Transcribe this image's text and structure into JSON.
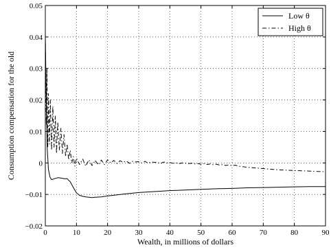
{
  "chart_data": {
    "type": "line",
    "title": "",
    "xlabel": "Wealth, in millions of dollars",
    "ylabel": "Consumption compensation for the old",
    "xlim": [
      0,
      90
    ],
    "ylim": [
      -0.02,
      0.05
    ],
    "xticks": [
      0,
      10,
      20,
      30,
      40,
      50,
      60,
      70,
      80,
      90
    ],
    "xtick_labels": [
      "0",
      "10",
      "20",
      "30",
      "40",
      "50",
      "60",
      "70",
      "80",
      "90"
    ],
    "yticks": [
      -0.02,
      -0.01,
      0,
      0.01,
      0.02,
      0.03,
      0.04,
      0.05
    ],
    "ytick_labels": [
      "−0.02",
      "−0.01",
      "0",
      "0.01",
      "0.02",
      "0.03",
      "0.04",
      "0.05"
    ],
    "grid": true,
    "legend_position": "top-right",
    "series": [
      {
        "name": "Low θ",
        "style": "solid",
        "color": "#000000",
        "x": [
          0,
          0.3,
          0.6,
          1,
          1.5,
          2,
          3,
          4,
          5,
          6,
          7,
          8,
          9,
          10,
          11,
          12,
          13,
          14,
          15,
          16,
          18,
          20,
          25,
          30,
          35,
          40,
          45,
          50,
          55,
          60,
          65,
          70,
          75,
          80,
          85,
          90
        ],
        "values": [
          0.04,
          0.02,
          0.005,
          -0.002,
          -0.0045,
          -0.0053,
          -0.005,
          -0.0047,
          -0.0048,
          -0.005,
          -0.005,
          -0.006,
          -0.0078,
          -0.0095,
          -0.0103,
          -0.0106,
          -0.0108,
          -0.0109,
          -0.011,
          -0.0109,
          -0.0108,
          -0.0105,
          -0.0099,
          -0.0094,
          -0.0091,
          -0.0088,
          -0.0086,
          -0.0084,
          -0.0082,
          -0.0081,
          -0.0079,
          -0.0078,
          -0.0077,
          -0.0076,
          -0.0075,
          -0.0075
        ]
      },
      {
        "name": "High θ",
        "style": "dashdot",
        "color": "#000000",
        "x": [
          0,
          0.3,
          0.5,
          0.8,
          1,
          1.3,
          1.6,
          2,
          2.4,
          2.8,
          3.2,
          3.6,
          4,
          4.5,
          5,
          5.5,
          6,
          6.5,
          7,
          7.5,
          8,
          8.5,
          9,
          9.5,
          10,
          11,
          12,
          13,
          14,
          15,
          16,
          17,
          18,
          19,
          20,
          21,
          22,
          23,
          24,
          25,
          26,
          27,
          28,
          29,
          30,
          31,
          32,
          33,
          34,
          35,
          36,
          37,
          38,
          39,
          40,
          41,
          42,
          43,
          44,
          45,
          46,
          47,
          48,
          49,
          50,
          51,
          52,
          53,
          54,
          55,
          56,
          57,
          58,
          59,
          60,
          61,
          62,
          65,
          70,
          75,
          80,
          85,
          90
        ],
        "values": [
          0.041,
          0.012,
          0.03,
          0.005,
          0.022,
          0.006,
          0.02,
          0.004,
          0.018,
          0.005,
          0.015,
          0.003,
          0.013,
          0.004,
          0.011,
          0.003,
          0.009,
          0.002,
          0.006,
          0.001,
          0.004,
          0.0,
          0.002,
          -0.001,
          0.0015,
          -0.0005,
          0.0012,
          -0.001,
          0.001,
          -0.0008,
          0.0008,
          -0.0006,
          0.0009,
          -0.0005,
          0.001,
          0.0,
          0.0008,
          -0.0002,
          0.0007,
          0.0002,
          0.0006,
          -0.0001,
          0.0005,
          0.0003,
          0.0004,
          0.0,
          0.0005,
          -0.0001,
          0.0003,
          0.0002,
          0.0002,
          -0.0002,
          0.0003,
          0.0,
          0.0001,
          -0.0001,
          0.0,
          -0.0002,
          0.0,
          -0.0001,
          -0.0002,
          -0.0001,
          -0.0003,
          -0.0002,
          -0.0004,
          -0.0002,
          -0.0005,
          -0.0003,
          -0.0006,
          -0.0004,
          -0.0007,
          -0.0005,
          -0.0008,
          -0.0006,
          -0.0009,
          -0.0007,
          -0.001,
          -0.0014,
          -0.0018,
          -0.0022,
          -0.0024,
          -0.0026,
          -0.0028
        ]
      }
    ]
  }
}
